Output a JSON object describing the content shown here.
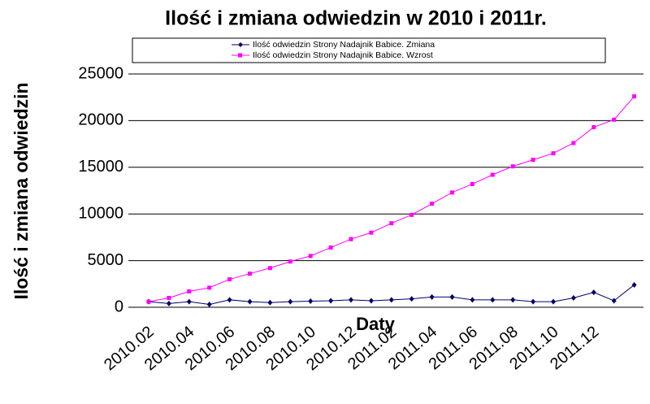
{
  "chart_data": {
    "type": "line",
    "title": "Ilość i zmiana odwiedzin w 2010 i 2011r.",
    "x_label": "Daty",
    "y_label": "Ilość i zmiana odwiedzin",
    "categories": [
      "2010.02",
      null,
      "2010.04",
      null,
      "2010.06",
      null,
      "2010.08",
      null,
      "2010.10",
      null,
      "2010.12",
      null,
      "2011.02",
      null,
      "2011.04",
      null,
      "2011.06",
      null,
      "2011.08",
      null,
      "2011.10",
      null,
      "2011.12",
      null,
      null
    ],
    "series": [
      {
        "name": "Ilość odwiedzin Strony Nadajnik Babice. Zmiana",
        "color": "#000066",
        "marker": "diamond",
        "values": [
          600,
          400,
          600,
          300,
          800,
          600,
          500,
          600,
          650,
          700,
          800,
          700,
          800,
          900,
          1100,
          1100,
          800,
          800,
          800,
          600,
          600,
          1000,
          1600,
          700,
          2400
        ]
      },
      {
        "name": "Ilość odwiedzin Strony Nadajnik Babice. Wzrost",
        "color": "#ff00ff",
        "marker": "square",
        "values": [
          600,
          1000,
          1700,
          2100,
          3000,
          3600,
          4200,
          4900,
          5500,
          6400,
          7300,
          8000,
          9000,
          9900,
          11100,
          12300,
          13200,
          14200,
          15100,
          15800,
          16500,
          17600,
          19300,
          20100,
          22600
        ]
      }
    ],
    "ylim": [
      0,
      25000
    ],
    "yticks": [
      0,
      5000,
      10000,
      15000,
      20000,
      25000
    ],
    "grid": true,
    "legend": "top"
  }
}
